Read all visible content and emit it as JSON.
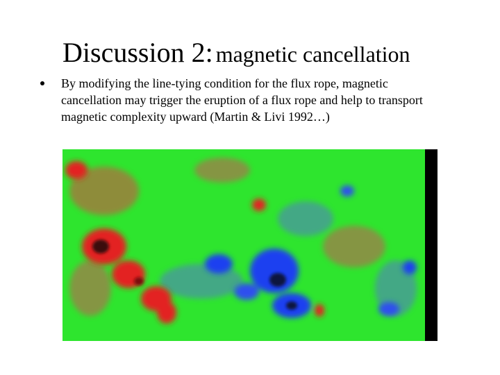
{
  "title": {
    "main": "Discussion 2:",
    "sub": "magnetic cancellation"
  },
  "bullets": [
    "By modifying the line-tying condition for the flux rope, magnetic cancellation may trigger the eruption of a flux rope and help to transport magnetic complexity upward (Martin & Livi 1992…)"
  ]
}
